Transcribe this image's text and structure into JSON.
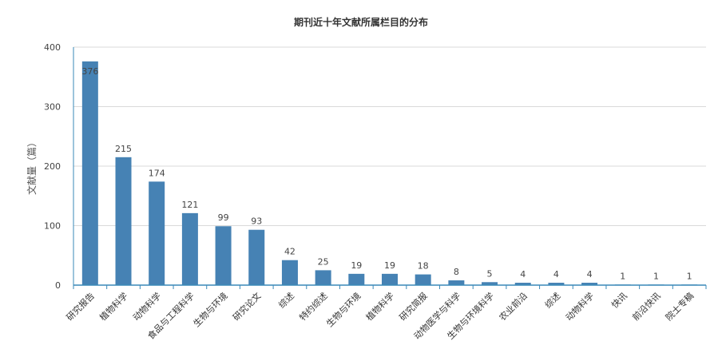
{
  "chart_data": {
    "type": "bar",
    "title": "期刊近十年文献所属栏目的分布",
    "ylabel": "文献量（篇）",
    "xlabel": "",
    "ylim": [
      0,
      400
    ],
    "yticks": [
      0,
      100,
      200,
      300,
      400
    ],
    "grid": true,
    "categories": [
      "研究报告",
      "植物科学",
      "动物科学",
      "食品与工程科学",
      "生物与环境",
      "研究论文",
      "综述",
      "特约综述",
      "生物与环境",
      "植物科学",
      "研究简报",
      "动物医学与科学",
      "生物与环境科学",
      "农业前沿",
      "综述",
      "动物科学",
      "快讯",
      "前沿快讯",
      "院士专稿"
    ],
    "values": [
      376,
      215,
      174,
      121,
      99,
      93,
      42,
      25,
      19,
      19,
      18,
      8,
      5,
      4,
      4,
      4,
      1,
      1,
      1
    ],
    "bar_color": "#4682b4",
    "axis_color": "#3a89b8"
  }
}
